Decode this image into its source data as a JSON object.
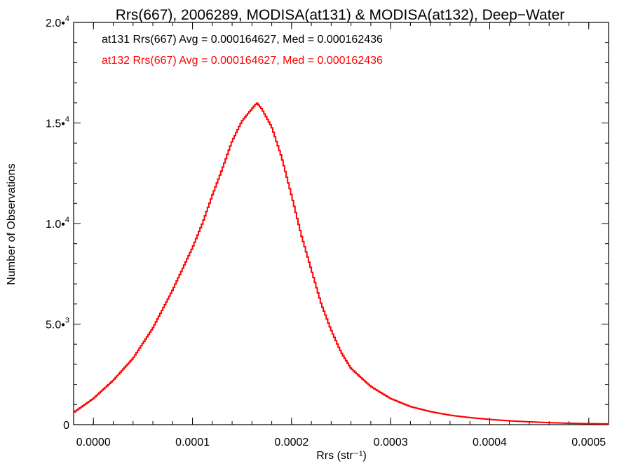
{
  "chart_data": {
    "type": "line",
    "step": true,
    "title": "Rrs(667), 2006289, MODISA(at131) & MODISA(at132), Deep−Water",
    "xlabel": "Rrs (str⁻¹)",
    "ylabel": "Number of Observations",
    "xlim": [
      -2e-05,
      0.00052
    ],
    "ylim": [
      0,
      20000
    ],
    "xticks": [
      0.0,
      0.0001,
      0.0002,
      0.0003,
      0.0004,
      0.0005
    ],
    "xtick_labels": [
      "0.0000",
      "0.0001",
      "0.0002",
      "0.0003",
      "0.0004",
      "0.0005"
    ],
    "yticks": [
      0,
      5000,
      10000,
      15000,
      20000
    ],
    "ytick_labels": [
      {
        "mantissa": "0",
        "exp": ""
      },
      {
        "mantissa": "5.0•",
        "exp": "3"
      },
      {
        "mantissa": "1.0•",
        "exp": "4"
      },
      {
        "mantissa": "1.5•",
        "exp": "4"
      },
      {
        "mantissa": "2.0•",
        "exp": "4"
      }
    ],
    "grid": false,
    "legend_placement": "top-left",
    "annotations": [
      {
        "text": "at131 Rrs(667) Avg = 0.000164627, Med = 0.000162436",
        "color": "#000000"
      },
      {
        "text": "at132 Rrs(667) Avg = 0.000164627, Med = 0.000162436",
        "color": "#ff0000"
      }
    ],
    "series": [
      {
        "color": "#ff0000",
        "x": [
          -2e-05,
          0.0,
          2e-05,
          4e-05,
          6e-05,
          8e-05,
          0.0001,
          0.00011,
          0.00012,
          0.00013,
          0.00014,
          0.00015,
          0.00016,
          0.000165,
          0.00017,
          0.00018,
          0.00019,
          0.0002,
          0.00021,
          0.00022,
          0.00023,
          0.00024,
          0.00025,
          0.00026,
          0.00028,
          0.0003,
          0.00032,
          0.00034,
          0.00036,
          0.00038,
          0.0004,
          0.00042,
          0.00044,
          0.00046,
          0.00048,
          0.0005,
          0.00052
        ],
        "y": [
          600,
          1300,
          2200,
          3300,
          4800,
          6700,
          8800,
          10000,
          11400,
          12700,
          14100,
          15100,
          15700,
          16000,
          15700,
          14800,
          13300,
          11400,
          9400,
          7700,
          6000,
          4700,
          3600,
          2800,
          1900,
          1300,
          900,
          650,
          470,
          350,
          260,
          190,
          140,
          100,
          70,
          50,
          40
        ]
      }
    ]
  }
}
